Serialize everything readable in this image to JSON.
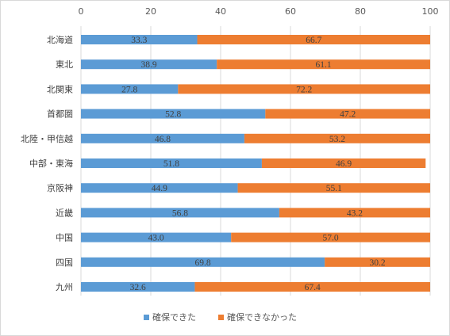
{
  "chart_data": {
    "type": "bar",
    "orientation": "horizontal",
    "stacked": true,
    "categories": [
      "北海道",
      "東北",
      "北関東",
      "首都圏",
      "北陸・甲信越",
      "中部・東海",
      "京阪神",
      "近畿",
      "中国",
      "四国",
      "九州"
    ],
    "series": [
      {
        "name": "確保できた",
        "color": "#5b9bd5",
        "values": [
          33.3,
          38.9,
          27.8,
          52.8,
          46.8,
          51.8,
          44.9,
          56.8,
          43.0,
          69.8,
          32.6
        ],
        "labels": [
          "33.3",
          "38.9",
          "27.8",
          "52.8",
          "46.8",
          "51.8",
          "44.9",
          "56.8",
          "43.0",
          "69.8",
          "32.6"
        ]
      },
      {
        "name": "確保できなかった",
        "color": "#ed7d31",
        "values": [
          66.7,
          61.1,
          72.2,
          47.2,
          53.2,
          46.9,
          55.1,
          43.2,
          57.0,
          30.2,
          67.4
        ],
        "labels": [
          "66.7",
          "61.1",
          "72.2",
          "47.2",
          "53.2",
          "46.9",
          "55.1",
          "43.2",
          "57.0",
          "30.2",
          "67.4"
        ]
      }
    ],
    "xlim": [
      0,
      100
    ],
    "xticks": [
      "0",
      "20",
      "40",
      "60",
      "80",
      "100"
    ],
    "axis_position": "top",
    "grid": true,
    "legend": "bottom"
  }
}
